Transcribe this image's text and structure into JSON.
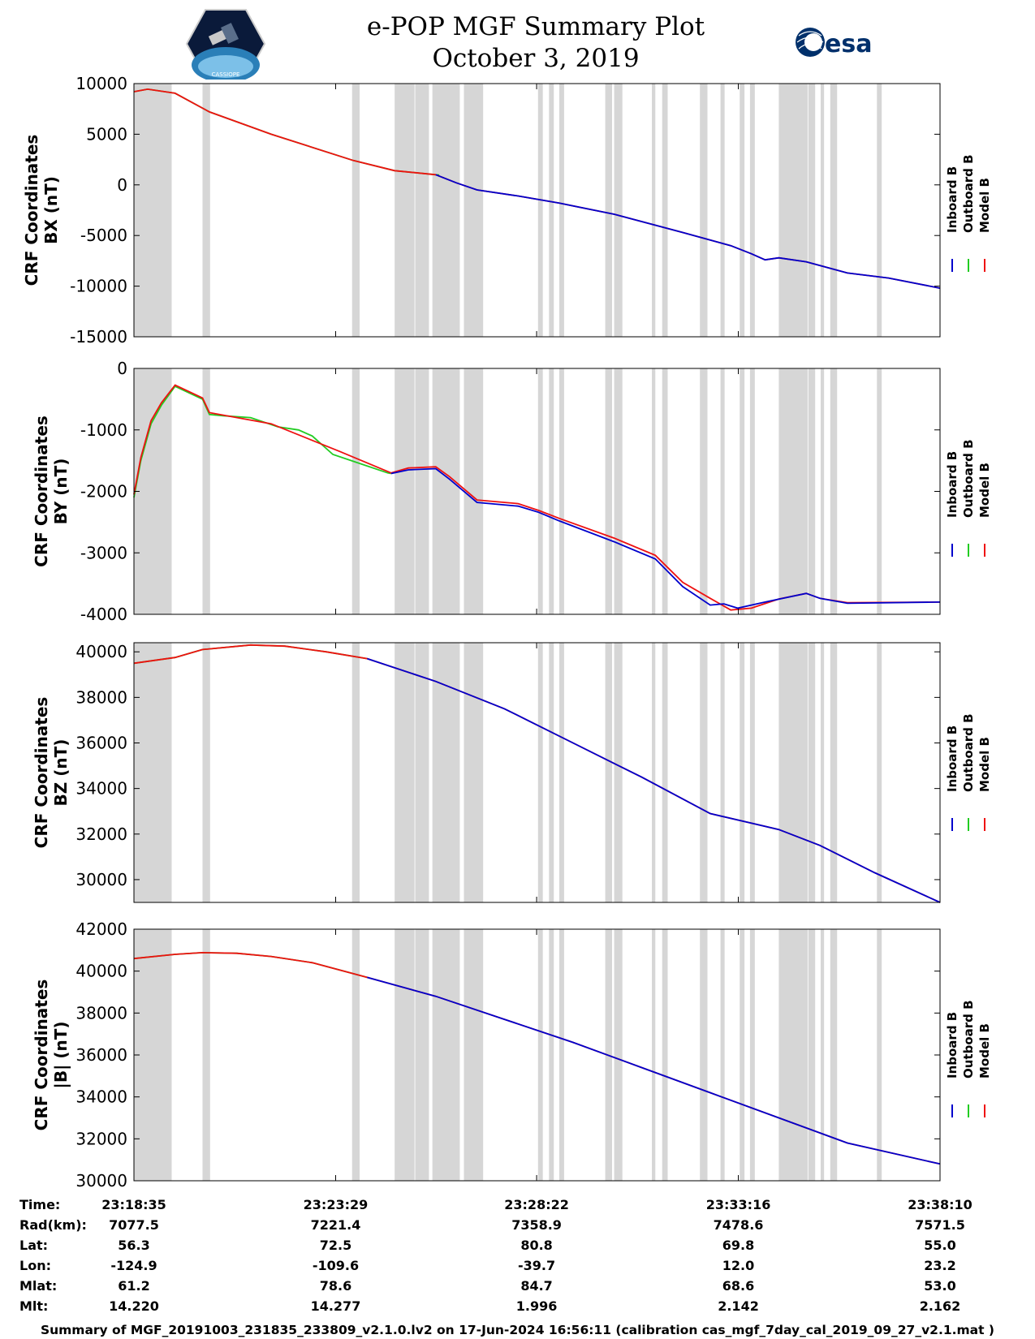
{
  "header": {
    "title_line1": "e-POP MGF Summary Plot",
    "title_line2": "October 3, 2019"
  },
  "logos": {
    "left_text": "CASSIOPE",
    "right_text": "esa"
  },
  "colors": {
    "inboard": "#0000cc",
    "outboard": "#22cc22",
    "model": "#ee1111",
    "gap": "#d6d6d6"
  },
  "chart_data": {
    "type": "line",
    "x_unit": "seconds since 23:18:35",
    "x_range": [
      0,
      1175
    ],
    "gap_intervals": [
      [
        0,
        55
      ],
      [
        100,
        111
      ],
      [
        318,
        329
      ],
      [
        380,
        409
      ],
      [
        410,
        430
      ],
      [
        435,
        475
      ],
      [
        481,
        509
      ],
      [
        589,
        596
      ],
      [
        605,
        612
      ],
      [
        620,
        627
      ],
      [
        687,
        697
      ],
      [
        700,
        712
      ],
      [
        755,
        760
      ],
      [
        770,
        778
      ],
      [
        825,
        836
      ],
      [
        855,
        861
      ],
      [
        883,
        890
      ],
      [
        898,
        905
      ],
      [
        940,
        982
      ],
      [
        983,
        993
      ],
      [
        1001,
        1006
      ],
      [
        1015,
        1025
      ],
      [
        1083,
        1090
      ]
    ],
    "legend": [
      "Inboard B",
      "Outboard B",
      "Model B"
    ],
    "panels": [
      {
        "name": "bx",
        "ylabel": [
          "CRF Coordinates",
          "BX (nT)"
        ],
        "ylim": [
          -15000,
          10000
        ],
        "yticks": [
          10000,
          5000,
          0,
          -5000,
          -10000,
          -15000
        ],
        "tick_labels": [
          "10000",
          "5000",
          "0",
          "-5000",
          "-10000",
          "-15000"
        ],
        "series": [
          {
            "name": "Outboard B",
            "x": [
              0,
              20,
              60,
              110,
              200,
              320,
              380,
              440,
              445
            ],
            "y": [
              9200,
              9450,
              9050,
              7200,
              5000,
              2400,
              1400,
              1000,
              980
            ]
          },
          {
            "name": "Inboard B",
            "x": [
              440,
              470,
              500,
              560,
              620,
              700,
              800,
              870,
              900,
              920,
              940,
              980,
              1040,
              1100,
              1175
            ],
            "y": [
              1000,
              200,
              -500,
              -1100,
              -1800,
              -2900,
              -4700,
              -6000,
              -6800,
              -7400,
              -7200,
              -7600,
              -8700,
              -9200,
              -10200
            ]
          },
          {
            "name": "Model B",
            "x": [
              0,
              20,
              60,
              110,
              200,
              320,
              380,
              440,
              470,
              500,
              560,
              620,
              700,
              800,
              870,
              900,
              920,
              940,
              980,
              1040,
              1100,
              1175
            ],
            "y": [
              9200,
              9450,
              9050,
              7200,
              5000,
              2400,
              1400,
              1000,
              200,
              -500,
              -1100,
              -1800,
              -2900,
              -4700,
              -6000,
              -6800,
              -7400,
              -7200,
              -7600,
              -8700,
              -9200,
              -10200
            ]
          }
        ]
      },
      {
        "name": "by",
        "ylabel": [
          "CRF Coordinates",
          "BY (nT)"
        ],
        "ylim": [
          -4000,
          0
        ],
        "yticks": [
          0,
          -1000,
          -2000,
          -3000,
          -4000
        ],
        "tick_labels": [
          "0",
          "-1000",
          "-2000",
          "-3000",
          "-4000"
        ],
        "series": [
          {
            "name": "Outboard B",
            "x": [
              0,
              10,
              25,
              40,
              60,
              100,
              110,
              130,
              170,
              210,
              240,
              260,
              290,
              330,
              370,
              375
            ],
            "y": [
              -2100,
              -1500,
              -900,
              -600,
              -290,
              -500,
              -750,
              -770,
              -800,
              -950,
              -1000,
              -1100,
              -1400,
              -1550,
              -1700,
              -1710
            ]
          },
          {
            "name": "Inboard B",
            "x": [
              375,
              400,
              440,
              460,
              500,
              560,
              590,
              620,
              700,
              760,
              800,
              840,
              860,
              880,
              920,
              980,
              1000,
              1040,
              1175
            ],
            "y": [
              -1710,
              -1650,
              -1630,
              -1800,
              -2180,
              -2240,
              -2340,
              -2480,
              -2820,
              -3100,
              -3550,
              -3850,
              -3830,
              -3900,
              -3800,
              -3660,
              -3740,
              -3820,
              -3800
            ]
          },
          {
            "name": "Model B",
            "x": [
              0,
              10,
              25,
              40,
              60,
              100,
              110,
              200,
              300,
              375,
              400,
              440,
              460,
              500,
              560,
              590,
              620,
              700,
              760,
              800,
              840,
              870,
              900,
              940,
              980,
              1000,
              1040,
              1175
            ],
            "y": [
              -2050,
              -1450,
              -850,
              -560,
              -270,
              -480,
              -720,
              -900,
              -1350,
              -1700,
              -1620,
              -1600,
              -1760,
              -2140,
              -2200,
              -2310,
              -2440,
              -2760,
              -3040,
              -3480,
              -3740,
              -3930,
              -3900,
              -3750,
              -3660,
              -3740,
              -3810,
              -3800
            ]
          }
        ]
      },
      {
        "name": "bz",
        "ylabel": [
          "CRF Coordinates",
          "BZ (nT)"
        ],
        "ylim": [
          29000,
          40400
        ],
        "yticks": [
          40000,
          38000,
          36000,
          34000,
          32000,
          30000
        ],
        "tick_labels": [
          "40000",
          "38000",
          "36000",
          "34000",
          "32000",
          "30000"
        ],
        "series": [
          {
            "name": "Outboard B",
            "x": [
              0,
              60,
              100,
              170,
              220,
              280,
              340
            ],
            "y": [
              39500,
              39750,
              40100,
              40300,
              40250,
              40000,
              39700
            ]
          },
          {
            "name": "Inboard B",
            "x": [
              340,
              440,
              540,
              640,
              740,
              840,
              940,
              1000,
              1080,
              1175
            ],
            "y": [
              39700,
              38700,
              37500,
              36000,
              34500,
              32900,
              32200,
              31500,
              30300,
              29000
            ]
          },
          {
            "name": "Model B",
            "x": [
              0,
              60,
              100,
              170,
              220,
              280,
              340,
              440,
              540,
              640,
              740,
              840,
              940,
              1000,
              1080,
              1175
            ],
            "y": [
              39500,
              39750,
              40100,
              40300,
              40250,
              40000,
              39700,
              38700,
              37500,
              36000,
              34500,
              32900,
              32200,
              31500,
              30300,
              29000
            ]
          }
        ]
      },
      {
        "name": "btot",
        "ylabel": [
          "CRF Coordinates",
          "|B| (nT)"
        ],
        "ylim": [
          30000,
          42000
        ],
        "yticks": [
          42000,
          40000,
          38000,
          36000,
          34000,
          32000,
          30000
        ],
        "tick_labels": [
          "42000",
          "40000",
          "38000",
          "36000",
          "34000",
          "32000",
          "30000"
        ],
        "series": [
          {
            "name": "Outboard B",
            "x": [
              0,
              60,
              100,
              150,
              200,
              260,
              340
            ],
            "y": [
              40600,
              40800,
              40880,
              40850,
              40700,
              40400,
              39700
            ]
          },
          {
            "name": "Inboard B",
            "x": [
              340,
              440,
              540,
              640,
              740,
              840,
              940,
              1040,
              1175
            ],
            "y": [
              39700,
              38800,
              37700,
              36600,
              35400,
              34200,
              33000,
              31800,
              30800
            ]
          },
          {
            "name": "Model B",
            "x": [
              0,
              60,
              100,
              150,
              200,
              260,
              340,
              440,
              540,
              640,
              740,
              840,
              940,
              1040,
              1175
            ],
            "y": [
              40600,
              40800,
              40880,
              40850,
              40700,
              40400,
              39700,
              38800,
              37700,
              36600,
              35400,
              34200,
              33000,
              31800,
              30800
            ]
          }
        ]
      }
    ],
    "x_ticks_sec": [
      0,
      294,
      587,
      881,
      1175
    ],
    "ephemeris": {
      "labels": [
        "Time:",
        "Rad(km):",
        "Lat:",
        "Lon:",
        "Mlat:",
        "Mlt:"
      ],
      "columns": [
        [
          "23:18:35",
          "7077.5",
          "56.3",
          "-124.9",
          "61.2",
          "14.220"
        ],
        [
          "23:23:29",
          "7221.4",
          "72.5",
          "-109.6",
          "78.6",
          "14.277"
        ],
        [
          "23:28:22",
          "7358.9",
          "80.8",
          "-39.7",
          "84.7",
          "1.996"
        ],
        [
          "23:33:16",
          "7478.6",
          "69.8",
          "12.0",
          "68.6",
          "2.142"
        ],
        [
          "23:38:10",
          "7571.5",
          "55.0",
          "23.2",
          "53.0",
          "2.162"
        ]
      ]
    }
  },
  "footer": {
    "text": "Summary of MGF_20191003_231835_233809_v2.1.0.lv2 on 17-Jun-2024 16:56:11 (calibration cas_mgf_7day_cal_2019_09_27_v2.1.mat )"
  }
}
